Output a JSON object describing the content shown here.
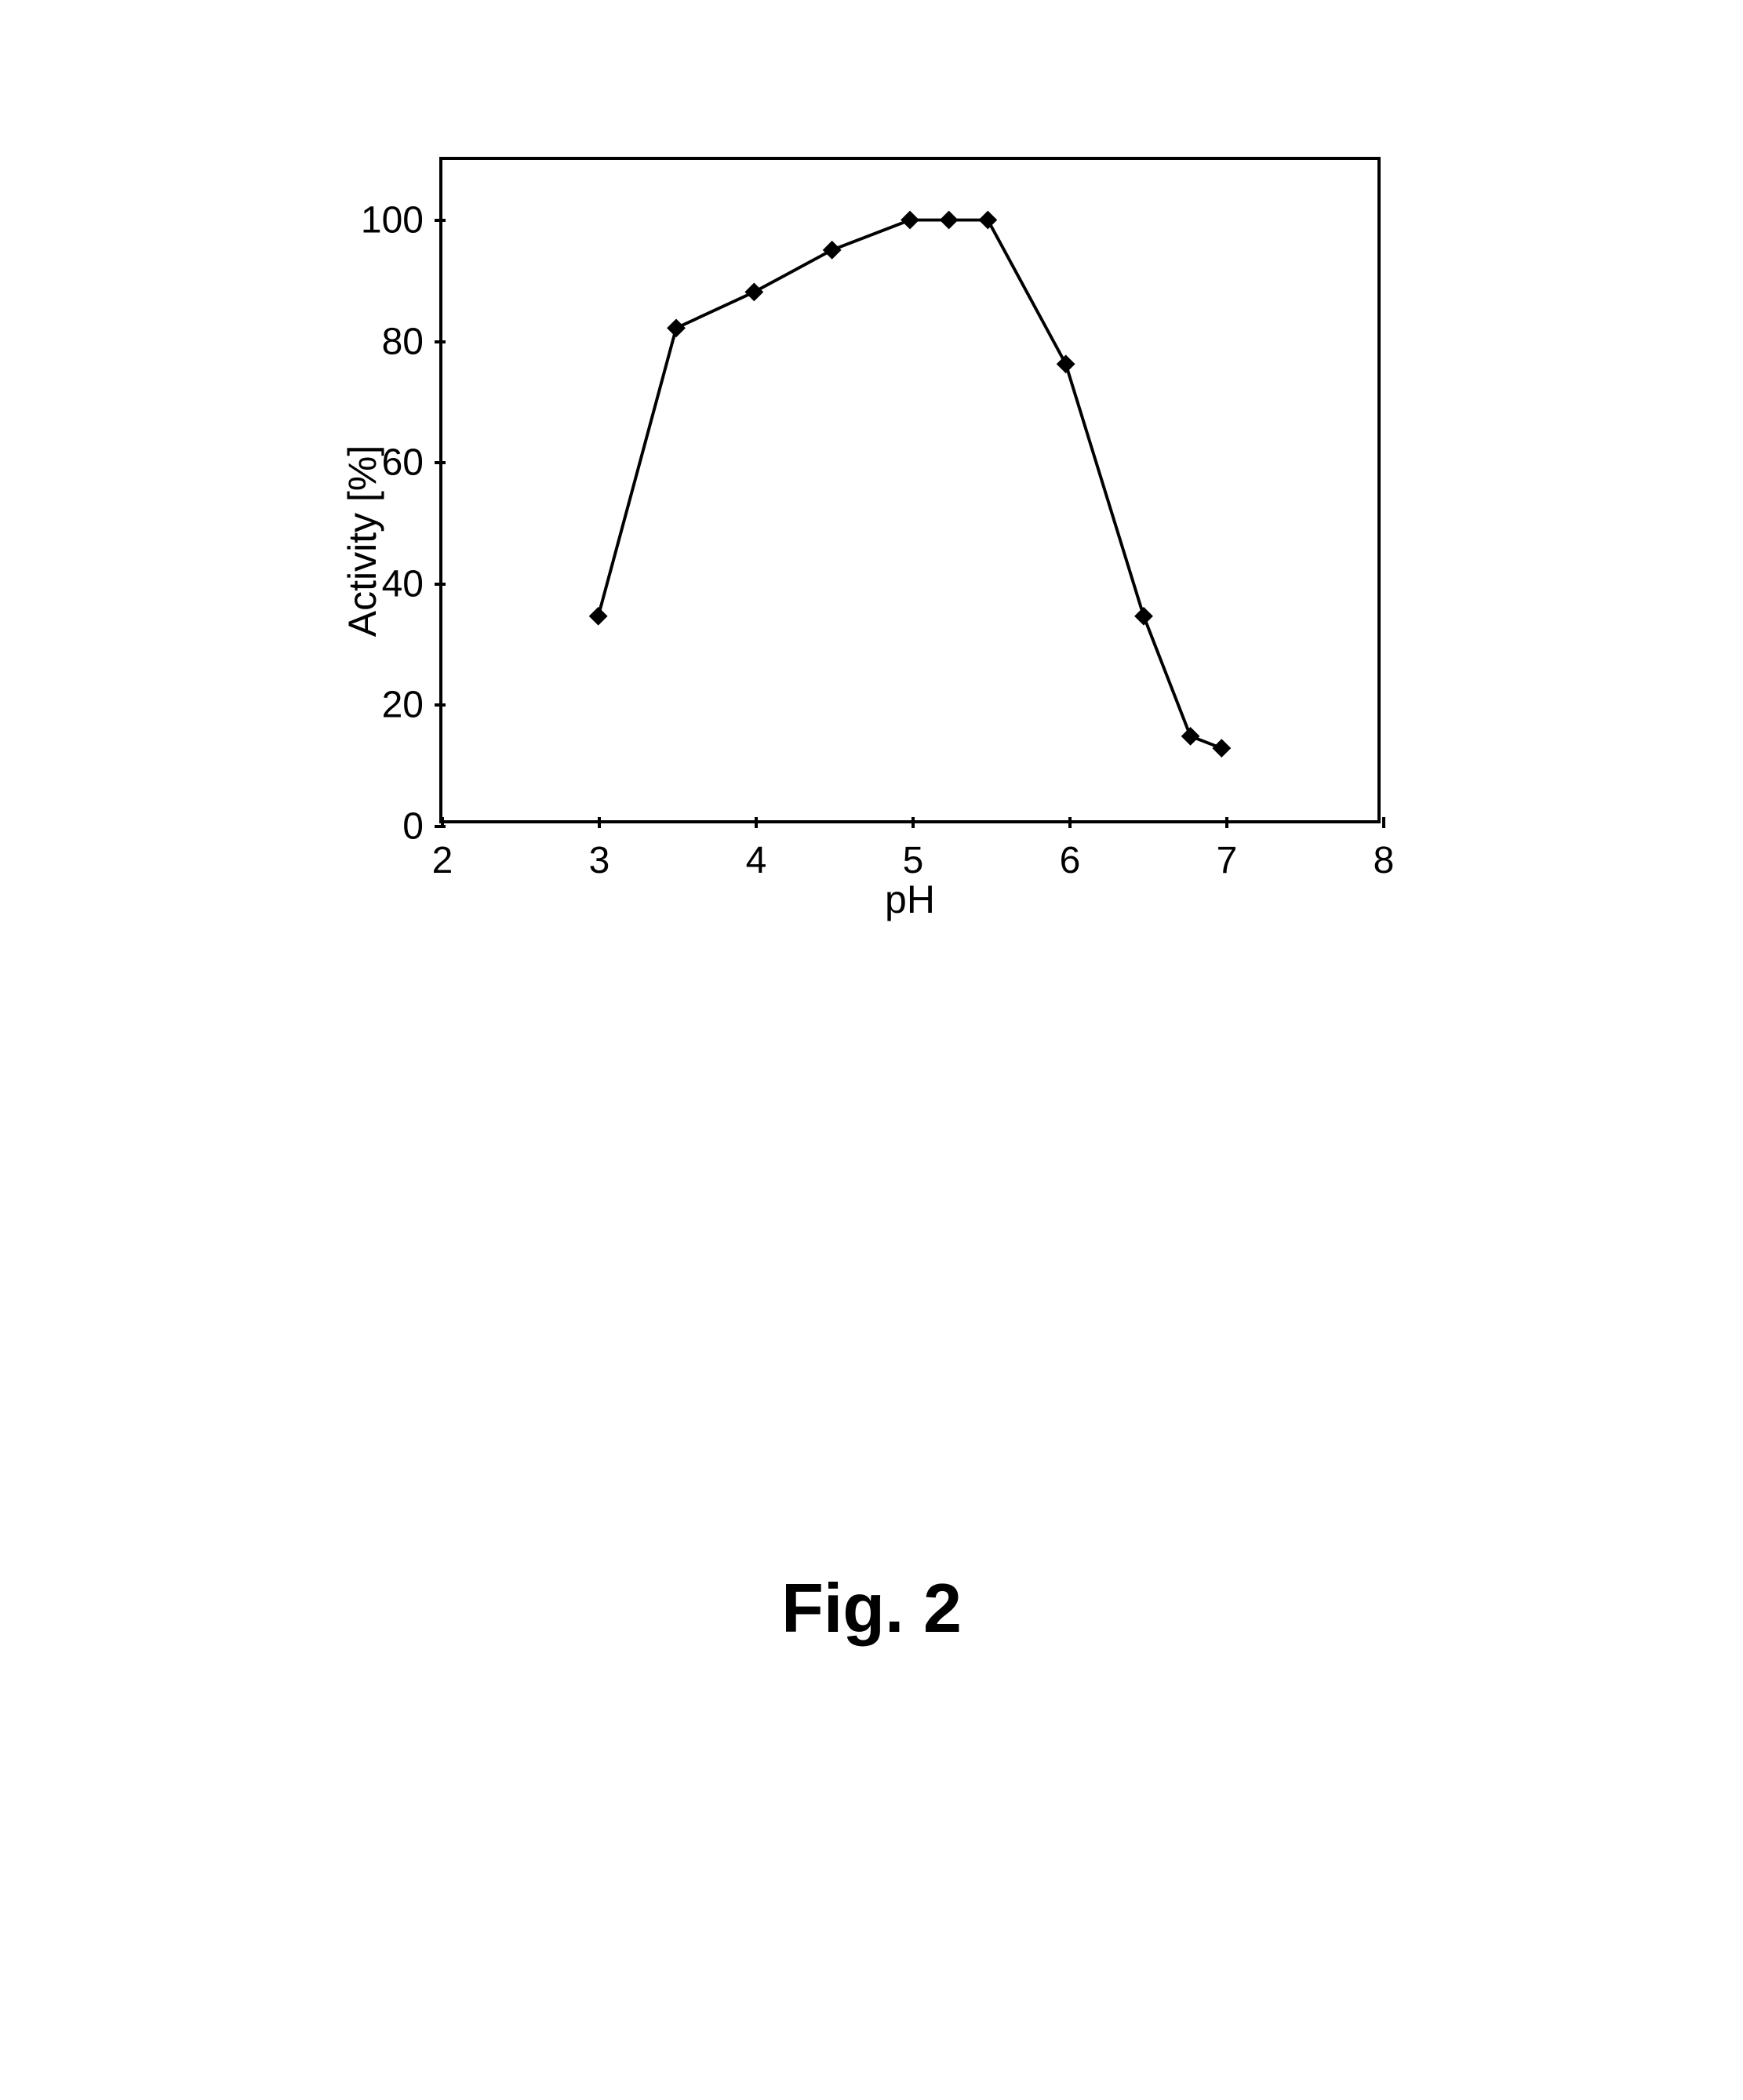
{
  "chart": {
    "type": "line",
    "ylabel": "Activity  [%]",
    "xlabel": "pH",
    "ylabel_fontsize": 50,
    "xlabel_fontsize": 50,
    "tick_fontsize": 48,
    "xlim": [
      2,
      8
    ],
    "ylim": [
      0,
      110
    ],
    "xticks": [
      2,
      3,
      4,
      5,
      6,
      7,
      8
    ],
    "yticks": [
      0,
      20,
      40,
      60,
      80,
      100
    ],
    "xtick_labels": [
      "2",
      "3",
      "4",
      "5",
      "6",
      "7",
      "8"
    ],
    "ytick_labels": [
      "0",
      "20",
      "40",
      "60",
      "80",
      "100"
    ],
    "background_color": "#ffffff",
    "border_color": "#000000",
    "line_color": "#000000",
    "marker_color": "#000000",
    "marker_style": "diamond",
    "marker_size": 12,
    "line_width": 4,
    "x_values": [
      3.0,
      3.5,
      4.0,
      4.5,
      5.0,
      5.25,
      5.5,
      6.0,
      6.5,
      6.8,
      7.0
    ],
    "y_values": [
      34,
      82,
      88,
      95,
      100,
      100,
      100,
      76,
      34,
      14,
      12
    ]
  },
  "caption": "Fig.  2"
}
